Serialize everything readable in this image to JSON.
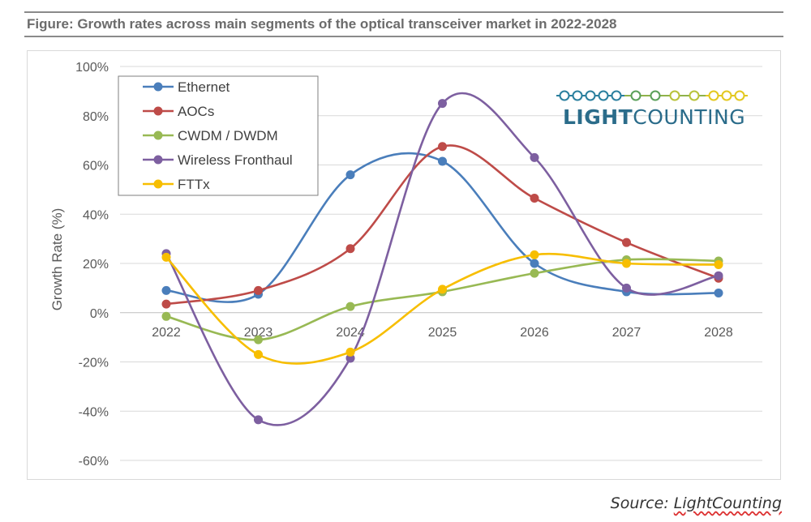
{
  "figure_title": "Figure: Growth rates across main segments of the optical transceiver market in 2022-2028",
  "source": {
    "prefix": "Source: ",
    "brand": "LightCounting"
  },
  "logo": {
    "text_bold": "LIGHT",
    "text_light": "COUNTING",
    "colors": [
      "#2a7f9e",
      "#5aa05a",
      "#b8c23a",
      "#e3c81f"
    ]
  },
  "chart_data": {
    "type": "line",
    "smooth": true,
    "title": "",
    "xlabel": "",
    "ylabel": "Growth Rate (%)",
    "categories": [
      "2022",
      "2023",
      "2024",
      "2025",
      "2026",
      "2027",
      "2028"
    ],
    "ylim": [
      -60,
      100
    ],
    "yticks": [
      -60,
      -40,
      -20,
      0,
      20,
      40,
      60,
      80,
      100
    ],
    "ytick_labels": [
      "-60%",
      "-40%",
      "-20%",
      "0%",
      "20%",
      "40%",
      "60%",
      "80%",
      "100%"
    ],
    "grid": true,
    "legend_position": "top-left",
    "series": [
      {
        "name": "Ethernet",
        "color": "#4a7ebb",
        "values": [
          9,
          7.5,
          56,
          61.5,
          20,
          8.5,
          8
        ]
      },
      {
        "name": "AOCs",
        "color": "#be4b48",
        "values": [
          3.5,
          9,
          26,
          67.5,
          46.5,
          28.5,
          14
        ]
      },
      {
        "name": "CWDM / DWDM",
        "color": "#98b954",
        "values": [
          -1.5,
          -11,
          2.5,
          8.5,
          16,
          21.5,
          21
        ]
      },
      {
        "name": "Wireless Fronthaul",
        "color": "#7d5fa0",
        "values": [
          24,
          -43.5,
          -18.5,
          85,
          63,
          10,
          15
        ]
      },
      {
        "name": "FTTx",
        "color": "#f7be00",
        "values": [
          22.5,
          -17,
          -16,
          9.5,
          23.5,
          20,
          19.5
        ]
      }
    ]
  }
}
